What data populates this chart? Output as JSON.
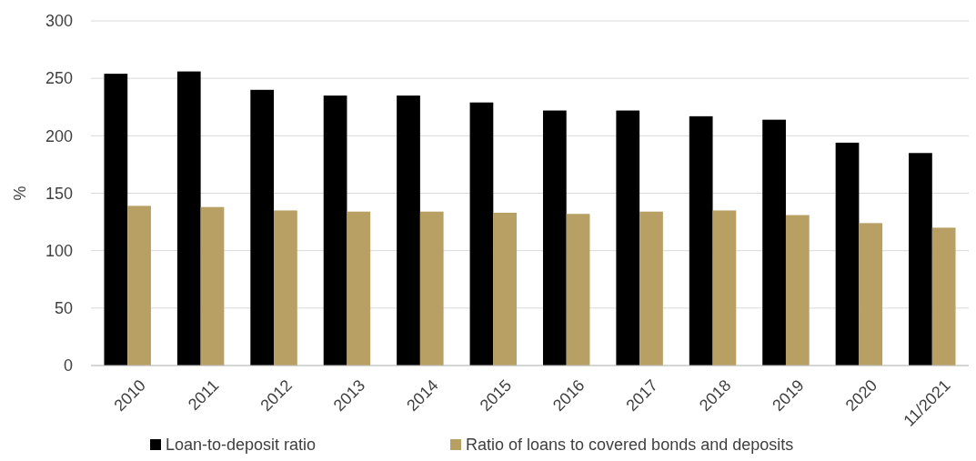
{
  "chart_data": {
    "type": "bar",
    "ylabel": "%",
    "categories": [
      "2010",
      "2011",
      "2012",
      "2013",
      "2014",
      "2015",
      "2016",
      "2017",
      "2018",
      "2019",
      "2020",
      "11/2021"
    ],
    "series": [
      {
        "name": "Loan-to-deposit ratio",
        "color": "#000000",
        "values": [
          254,
          256,
          240,
          235,
          235,
          229,
          222,
          222,
          217,
          214,
          194,
          185
        ]
      },
      {
        "name": "Ratio of loans to covered bonds and deposits",
        "color": "#b8a064",
        "values": [
          139,
          138,
          135,
          134,
          134,
          133,
          132,
          134,
          135,
          131,
          124,
          120
        ]
      }
    ],
    "ylim": [
      0,
      300
    ],
    "yticks": [
      0,
      50,
      100,
      150,
      200,
      250,
      300
    ],
    "grid": "y",
    "legend": "bottom"
  }
}
